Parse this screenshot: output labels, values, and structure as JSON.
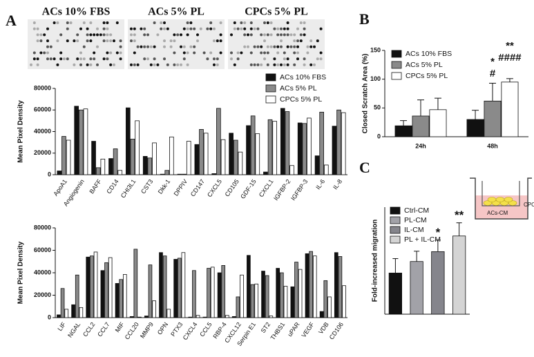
{
  "panel_labels": [
    "A",
    "B",
    "C"
  ],
  "array_labels": [
    "ACs 10% FBS",
    "ACs 5% PL",
    "CPCs 5% PL"
  ],
  "chart_data": [
    {
      "type": "bar",
      "ylabel": "Mean Pixel Density",
      "categories": [
        "ApoA1",
        "Angiogenin",
        "BAFF",
        "CD14",
        "CHI3L1",
        "CST3",
        "Dkk-1",
        "DPPIV",
        "CD147",
        "CXCL5",
        "CD105",
        "GDF-15",
        "CXCL1",
        "IGFBP-2",
        "IGFBP-3",
        "IL-6",
        "IL-8"
      ],
      "series": [
        {
          "name": "ACs 10% FBS",
          "color": "#111111",
          "values": [
            3500,
            63500,
            31000,
            15000,
            62000,
            17000,
            500,
            500,
            28000,
            1000,
            38500,
            45500,
            2500,
            61500,
            48000,
            17500,
            45000
          ]
        },
        {
          "name": "ACs 5% PL",
          "color": "#8a8a8a",
          "values": [
            35500,
            60000,
            6500,
            24000,
            33000,
            15500,
            4000,
            500,
            42000,
            61500,
            32000,
            54500,
            51000,
            58500,
            47500,
            58000,
            60000
          ]
        },
        {
          "name": "CPCs 5% PL",
          "color": "#ffffff",
          "values": [
            32000,
            61000,
            14500,
            4000,
            50000,
            29500,
            35000,
            31000,
            38500,
            32500,
            21000,
            38000,
            49500,
            8500,
            52500,
            9000,
            57500
          ]
        }
      ],
      "ylim": [
        0,
        80000
      ],
      "yticks": [
        0,
        20000,
        40000,
        60000,
        80000
      ],
      "legend": "top-right"
    },
    {
      "type": "bar",
      "ylabel": "Mean Pixel Density",
      "categories": [
        "LIF",
        "NGAL",
        "CCL2",
        "CCL7",
        "MIF",
        "CCL20",
        "MMP9",
        "OPN",
        "PTX3",
        "CXCL4",
        "CCL5",
        "RBP-4",
        "CXCL12",
        "Serpin E1",
        "ST2",
        "THBS1",
        "uPAR",
        "VEGF",
        "VDB",
        "CD106"
      ],
      "series": [
        {
          "color": "#111111",
          "values": [
            2500,
            11500,
            54000,
            42000,
            30500,
            1000,
            1500,
            58000,
            52000,
            500,
            500,
            40000,
            1000,
            55500,
            41500,
            44000,
            27500,
            57000,
            5500,
            58000
          ]
        },
        {
          "color": "#8a8a8a",
          "values": [
            26000,
            38000,
            55000,
            49000,
            34000,
            61000,
            47000,
            55000,
            53000,
            42000,
            44000,
            46500,
            18500,
            29500,
            37500,
            40000,
            49500,
            59000,
            33000,
            54500
          ]
        },
        {
          "color": "#ffffff",
          "values": [
            7500,
            9000,
            58500,
            53500,
            38500,
            500,
            15000,
            7500,
            58000,
            2000,
            45000,
            2000,
            38000,
            30000,
            1500,
            28000,
            43000,
            55000,
            18500,
            28500
          ]
        }
      ],
      "ylim": [
        0,
        80000
      ],
      "yticks": [
        0,
        20000,
        40000,
        60000,
        80000
      ]
    },
    {
      "type": "bar",
      "ylabel": "Closed Scratch Area (%)",
      "categories": [
        "24h",
        "48h"
      ],
      "series": [
        {
          "name": "ACs 10% FBS",
          "color": "#111111",
          "values": [
            19,
            30
          ],
          "errors": [
            9,
            16
          ]
        },
        {
          "name": "ACs 5% PL",
          "color": "#8a8a8a",
          "values": [
            36,
            62
          ],
          "errors": [
            28,
            31
          ]
        },
        {
          "name": "CPCs 5% PL",
          "color": "#ffffff",
          "values": [
            47,
            95
          ],
          "errors": [
            20,
            6
          ]
        }
      ],
      "annotations": [
        "*",
        "#",
        "**",
        "####"
      ],
      "ylim": [
        0,
        150
      ],
      "yticks": [
        0,
        50,
        100,
        150
      ],
      "legend": "top-left"
    },
    {
      "type": "bar",
      "ylabel": "Fold-increased migration",
      "categories": [
        "Ctrl-CM",
        "PL-CM",
        "IL-CM",
        "PL + IL-CM"
      ],
      "colors": [
        "#111111",
        "#a2a2a8",
        "#85858c",
        "#d4d4d4"
      ],
      "values": [
        1.0,
        1.28,
        1.52,
        1.9
      ],
      "errors": [
        0.35,
        0.25,
        0.28,
        0.32
      ],
      "annotations": [
        "*",
        "**"
      ],
      "inset_labels": [
        "CPC",
        "ACs-CM"
      ],
      "ylim": [
        0,
        2.6
      ],
      "legend": "top-left"
    }
  ]
}
